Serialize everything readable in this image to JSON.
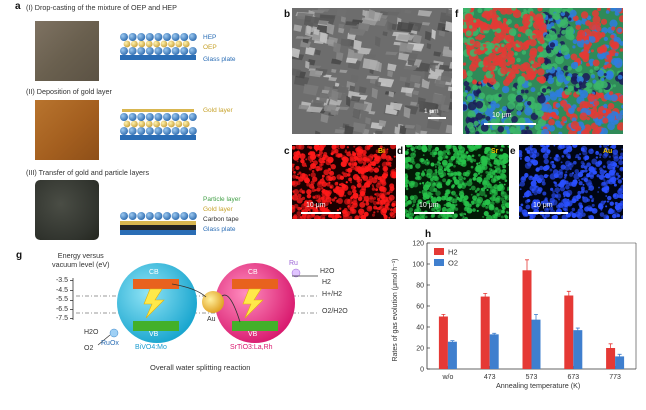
{
  "colors": {
    "hep": "#4a86c8",
    "oep": "#d8b650",
    "gold": "#c7a22a",
    "particle": "#43a047",
    "glass": "#2a6db5",
    "h2": "#e53935",
    "o2": "#3f7fce",
    "bivo4": "#2bb5d4",
    "srtio3": "#e0287a"
  },
  "panel_a": {
    "label": "a",
    "steps": [
      {
        "title": "(I) Drop-casting of the mixture of OEP and HEP",
        "labels": [
          "HEP",
          "OEP",
          "Glass plate"
        ]
      },
      {
        "title": "(II) Deposition of gold layer",
        "labels": [
          "Gold layer"
        ]
      },
      {
        "title": "(III) Transfer of gold and particle layers",
        "labels": [
          "Particle layer",
          "Gold layer",
          "Carbon tape",
          "Glass plate"
        ]
      }
    ]
  },
  "panel_b": {
    "label": "b",
    "scale": "1 μm"
  },
  "panel_f": {
    "label": "f",
    "scale": "10 μm"
  },
  "panel_c": {
    "label": "c",
    "element": "Bi",
    "scale": "10 μm"
  },
  "panel_d": {
    "label": "d",
    "element": "Sr",
    "scale": "10 μm"
  },
  "panel_e": {
    "label": "e",
    "element": "Au",
    "scale": "10 μm"
  },
  "panel_g": {
    "label": "g",
    "ylabel_line1": "Energy versus",
    "ylabel_line2": "vacuum level (eV)",
    "ticks": [
      "-3.5",
      "-4.5",
      "-5.5",
      "-6.5",
      "-7.5"
    ],
    "cb": "CB",
    "vb": "VB",
    "au": "Au",
    "ru": "Ru",
    "ruox": "RuOx",
    "h2o_left": "H2O",
    "o2_left": "O2",
    "h2o_right": "H2O",
    "h2_right": "H2",
    "h_ref": "H+/H2",
    "o_ref": "O2/H2O",
    "left_semi": "BiVO4:Mo",
    "right_semi": "SrTiO3:La,Rh",
    "caption": "Overall water splitting reaction"
  },
  "chart_data": {
    "type": "bar",
    "label": "h",
    "categories": [
      "w/o",
      "473",
      "573",
      "673",
      "773"
    ],
    "series": [
      {
        "name": "H2",
        "values": [
          50,
          69,
          94,
          70,
          20
        ],
        "errors": [
          2,
          3,
          10,
          4,
          4
        ]
      },
      {
        "name": "O2",
        "values": [
          26,
          33,
          47,
          37,
          12
        ],
        "errors": [
          1,
          1,
          5,
          2,
          2
        ]
      }
    ],
    "xlabel": "Annealing temperature (K)",
    "ylabel": "Rates of gas evolution (μmol h⁻¹)",
    "ylim": [
      0,
      120
    ],
    "yticks": [
      "0",
      "20",
      "40",
      "60",
      "80",
      "100",
      "120"
    ],
    "legend": [
      "H2",
      "O2"
    ]
  }
}
